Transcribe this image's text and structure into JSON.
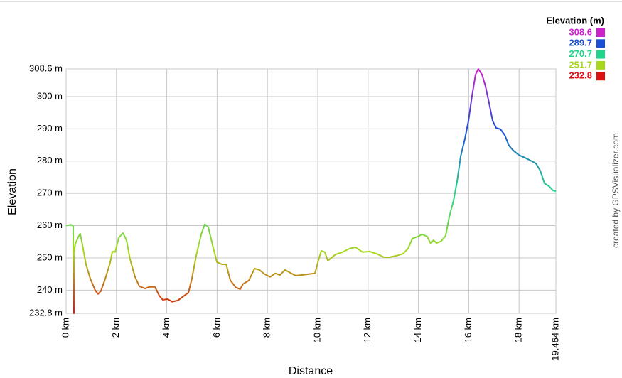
{
  "chart_data": {
    "type": "line",
    "ylabel": "Elevation",
    "xlabel": "Distance",
    "legend_title": "Elevation (m)",
    "credit": "created by GPSVisualizer.com",
    "legend_position": "top-right",
    "grid": true,
    "color_scale": [
      {
        "value": 308.6,
        "color": "#cc22cc"
      },
      {
        "value": 289.7,
        "color": "#1a4fd6"
      },
      {
        "value": 270.7,
        "color": "#22d48a"
      },
      {
        "value": 251.7,
        "color": "#a8d81c"
      },
      {
        "value": 232.8,
        "color": "#dd1111"
      }
    ],
    "xlim": [
      0,
      19.464
    ],
    "ylim": [
      232.8,
      308.6
    ],
    "xticks": [
      {
        "value": 0,
        "label": "0 km"
      },
      {
        "value": 2,
        "label": "2 km"
      },
      {
        "value": 4,
        "label": "4 km"
      },
      {
        "value": 6,
        "label": "6 km"
      },
      {
        "value": 8,
        "label": "8 km"
      },
      {
        "value": 10,
        "label": "10 km"
      },
      {
        "value": 12,
        "label": "12 km"
      },
      {
        "value": 14,
        "label": "14 km"
      },
      {
        "value": 16,
        "label": "16 km"
      },
      {
        "value": 18,
        "label": "18 km"
      },
      {
        "value": 19.464,
        "label": "19.464 km"
      }
    ],
    "yticks": [
      {
        "value": 232.8,
        "label": "232.8 m"
      },
      {
        "value": 240,
        "label": "240 m"
      },
      {
        "value": 250,
        "label": "250 m"
      },
      {
        "value": 260,
        "label": "260 m"
      },
      {
        "value": 270,
        "label": "270 m"
      },
      {
        "value": 280,
        "label": "280 m"
      },
      {
        "value": 290,
        "label": "290 m"
      },
      {
        "value": 300,
        "label": "300 m"
      },
      {
        "value": 308.6,
        "label": "308.6 m"
      }
    ],
    "x": [
      0,
      0.2,
      0.28,
      0.31,
      0.31,
      0.37,
      0.48,
      0.56,
      0.65,
      0.79,
      0.96,
      1.16,
      1.27,
      1.38,
      1.55,
      1.75,
      1.84,
      1.95,
      2.09,
      2.26,
      2.4,
      2.54,
      2.74,
      2.91,
      3.14,
      3.31,
      3.53,
      3.7,
      3.84,
      4.04,
      4.21,
      4.44,
      4.66,
      4.86,
      5.0,
      5.17,
      5.37,
      5.51,
      5.65,
      5.82,
      5.99,
      6.19,
      6.36,
      6.53,
      6.75,
      6.92,
      7.03,
      7.26,
      7.49,
      7.68,
      7.88,
      8.11,
      8.31,
      8.5,
      8.7,
      8.9,
      9.12,
      9.38,
      9.66,
      9.89,
      10.0,
      10.14,
      10.28,
      10.4,
      10.54,
      10.71,
      10.99,
      11.27,
      11.5,
      11.78,
      12.06,
      12.34,
      12.63,
      12.85,
      13.14,
      13.39,
      13.59,
      13.76,
      13.98,
      14.15,
      14.35,
      14.49,
      14.6,
      14.72,
      14.89,
      15.08,
      15.23,
      15.4,
      15.54,
      15.68,
      15.85,
      15.99,
      16.13,
      16.27,
      16.38,
      16.53,
      16.67,
      16.81,
      16.95,
      17.09,
      17.26,
      17.43,
      17.6,
      17.77,
      17.99,
      18.22,
      18.45,
      18.67,
      18.84,
      19.01,
      19.18,
      19.35,
      19.464
    ],
    "values": [
      260,
      260.3,
      259.9,
      232.8,
      251.8,
      254.4,
      256.4,
      257.5,
      254,
      248,
      243.6,
      239.9,
      238.8,
      239.7,
      243.4,
      248.5,
      252,
      251.8,
      256.2,
      257.7,
      255.5,
      249.6,
      244.1,
      241.2,
      240.5,
      241,
      241,
      238.3,
      237,
      237.2,
      236.4,
      236.8,
      238.1,
      239.2,
      243.6,
      250.7,
      257.3,
      260.4,
      259.5,
      254,
      248.7,
      248,
      248,
      243,
      240.8,
      240.3,
      241.9,
      243,
      246.7,
      246.3,
      245,
      244.1,
      245.2,
      244.7,
      246.3,
      245.4,
      244.5,
      244.7,
      245,
      245.2,
      248.5,
      252.2,
      251.8,
      249.1,
      250,
      251.1,
      251.8,
      252.9,
      253.3,
      251.8,
      252,
      251.3,
      250.2,
      250.2,
      250.7,
      251.3,
      252.9,
      256,
      256.6,
      257.3,
      256.6,
      254.4,
      255.5,
      254.6,
      255.1,
      256.8,
      262.8,
      267.9,
      273.8,
      281.5,
      287,
      292.5,
      300.2,
      306.8,
      308.6,
      306.8,
      303.1,
      298,
      292.5,
      290.3,
      289.9,
      288.1,
      284.8,
      283.3,
      281.9,
      281.1,
      280.2,
      279.3,
      277.1,
      273.1,
      272.3,
      270.9,
      270.7
    ]
  }
}
